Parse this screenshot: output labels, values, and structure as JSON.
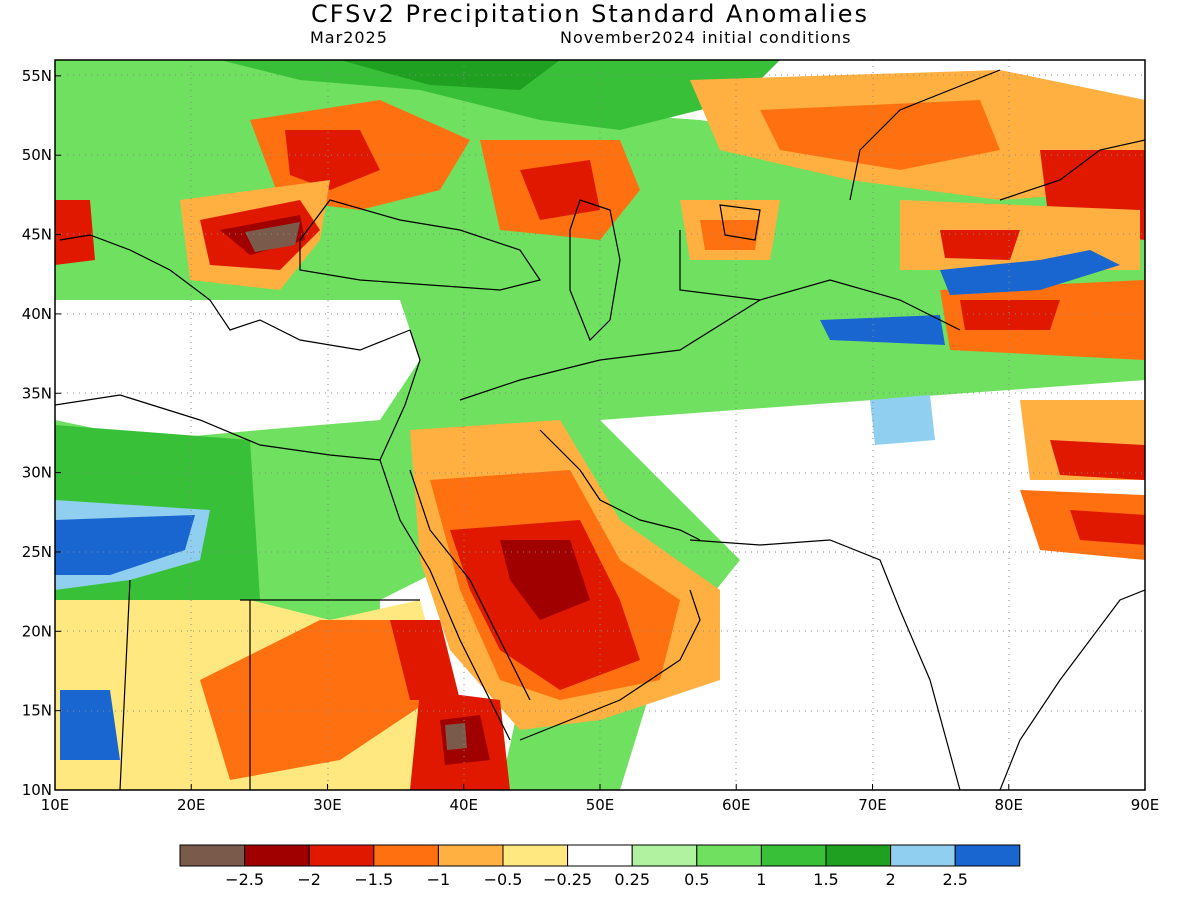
{
  "title": "CFSv2 Precipitation Standard Anomalies",
  "valid_month": "Mar2025",
  "initial_conditions": "November2024 initial conditions",
  "map": {
    "lon_range": [
      10,
      90
    ],
    "lat_range": [
      10,
      56
    ],
    "x_ticks": [
      "10E",
      "20E",
      "30E",
      "40E",
      "50E",
      "60E",
      "70E",
      "80E",
      "90E"
    ],
    "x_tick_values": [
      10,
      20,
      30,
      40,
      50,
      60,
      70,
      80,
      90
    ],
    "y_ticks": [
      "10N",
      "15N",
      "20N",
      "25N",
      "30N",
      "35N",
      "40N",
      "45N",
      "50N",
      "55N"
    ],
    "y_tick_values": [
      10,
      15,
      20,
      25,
      30,
      35,
      40,
      45,
      50,
      55
    ],
    "grid": "dotted"
  },
  "legend": {
    "colors": [
      "#7a5a4b",
      "#a00000",
      "#e01800",
      "#ff7010",
      "#ffb040",
      "#ffe880",
      "#ffffff",
      "#b0f2a0",
      "#70e060",
      "#38c038",
      "#20a020",
      "#90cff0",
      "#1a66d0"
    ],
    "labels": [
      "−2.5",
      "−2",
      "−1.5",
      "−1",
      "−0.5",
      "−0.25",
      "0.25",
      "0.5",
      "1",
      "1.5",
      "2",
      "2.5"
    ]
  }
}
